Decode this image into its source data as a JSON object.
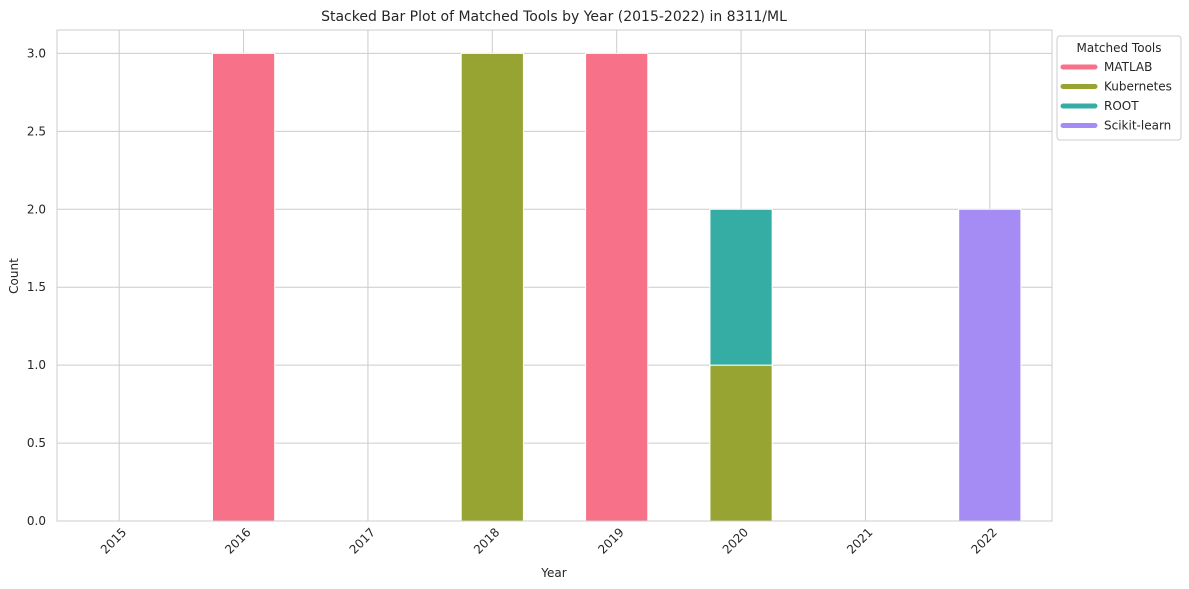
{
  "chart_data": {
    "type": "bar",
    "stacked": true,
    "title": "Stacked Bar Plot of Matched Tools by Year (2015-2022) in 8311/ML",
    "xlabel": "Year",
    "ylabel": "Count",
    "categories": [
      "2015",
      "2016",
      "2017",
      "2018",
      "2019",
      "2020",
      "2021",
      "2022"
    ],
    "ylim": [
      0,
      3.15
    ],
    "yticks": [
      "0.0",
      "0.5",
      "1.0",
      "1.5",
      "2.0",
      "2.5",
      "3.0"
    ],
    "grid": true,
    "legend_position": "upper-right-outside",
    "legend_title": "Matched Tools",
    "series": [
      {
        "name": "MATLAB",
        "color": "#f77189",
        "values": [
          0,
          3,
          0,
          0,
          3,
          0,
          0,
          0
        ]
      },
      {
        "name": "Kubernetes",
        "color": "#97a431",
        "values": [
          0,
          0,
          0,
          3,
          0,
          1,
          0,
          0
        ]
      },
      {
        "name": "ROOT",
        "color": "#36ada4",
        "values": [
          0,
          0,
          0,
          0,
          0,
          1,
          0,
          0
        ]
      },
      {
        "name": "Scikit-learn",
        "color": "#a48cf4",
        "values": [
          0,
          0,
          0,
          0,
          0,
          0,
          0,
          2
        ]
      }
    ]
  }
}
